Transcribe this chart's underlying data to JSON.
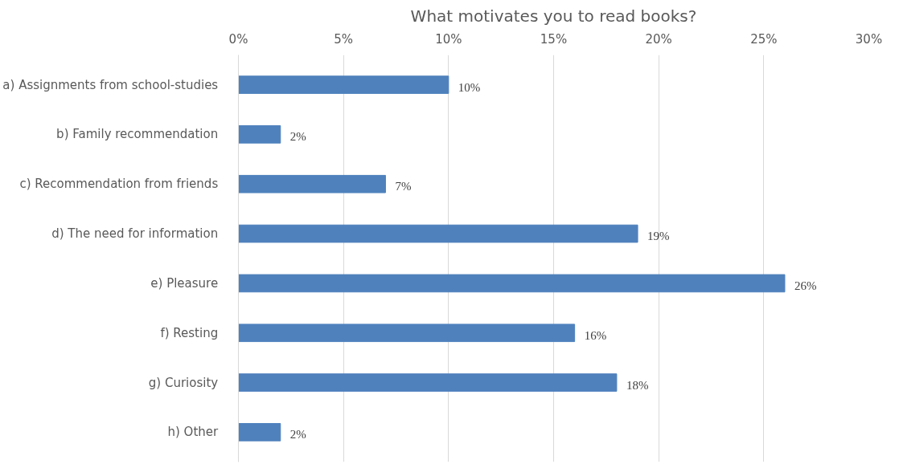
{
  "chart_data": {
    "type": "bar",
    "orientation": "horizontal",
    "title": "What motivates you to read books?",
    "categories": [
      "a)    Assignments from school-studies",
      "b)    Family recommendation",
      "c)    Recommendation from friends",
      "d)    The need for information",
      "e)    Pleasure",
      "f)    Resting",
      "g)    Curiosity",
      "h)    Other"
    ],
    "values": [
      10,
      2,
      7,
      19,
      26,
      16,
      18,
      2
    ],
    "value_labels": [
      "10%",
      "2%",
      "7%",
      "19%",
      "26%",
      "16%",
      "18%",
      "2%"
    ],
    "color": "#4f81bd",
    "xlim": [
      0,
      30
    ],
    "xticks": [
      {
        "value": 0,
        "label": "0%"
      },
      {
        "value": 5,
        "label": "5%"
      },
      {
        "value": 10,
        "label": "10%"
      },
      {
        "value": 15,
        "label": "15%"
      },
      {
        "value": 20,
        "label": "20%"
      },
      {
        "value": 25,
        "label": "25%"
      },
      {
        "value": 30,
        "label": "30%"
      }
    ],
    "grid": "x"
  }
}
